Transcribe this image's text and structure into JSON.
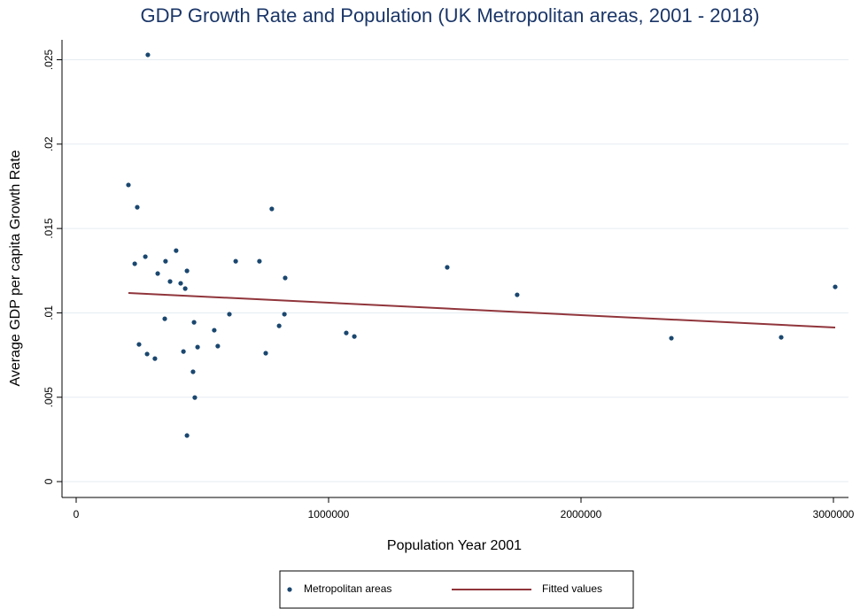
{
  "chart_data": {
    "type": "scatter",
    "title": "GDP Growth Rate and Population (UK Metropolitan areas, 2001 - 2018)",
    "x_label": "Population Year 2001",
    "y_label": "Average GDP per capita Growth Rate",
    "xlim": [
      -56140,
      3059649
    ],
    "ylim": [
      -0.00094,
      0.02618
    ],
    "xticks": [
      0,
      1000000,
      2000000,
      3000000
    ],
    "yticks": [
      0,
      {
        "value": 0.005,
        "label": ".005"
      },
      {
        "value": 0.01,
        "label": ".01"
      },
      {
        "value": 0.015,
        "label": ".015"
      },
      {
        "value": 0.02,
        "label": ".02"
      },
      {
        "value": 0.025,
        "label": ".025"
      }
    ],
    "grid": true,
    "legend": "bottom",
    "series": [
      {
        "name": "Metropolitan areas",
        "type": "scatter",
        "color": "#1a476f",
        "x": [
          207000,
          242000,
          232000,
          274000,
          284000,
          323000,
          354000,
          396000,
          372000,
          414000,
          439000,
          432000,
          351000,
          249000,
          281000,
          312000,
          467000,
          481000,
          425000,
          463000,
          470000,
          439000,
          547000,
          561000,
          607000,
          632000,
          726000,
          775000,
          751000,
          828000,
          825000,
          804000,
          1070000,
          1102000,
          1470000,
          1747000,
          2358000,
          2793000,
          3007000
        ],
        "values": [
          0.01758,
          0.01626,
          0.01291,
          0.01333,
          0.02529,
          0.01233,
          0.01306,
          0.01369,
          0.01186,
          0.01175,
          0.01249,
          0.01144,
          0.00965,
          0.00813,
          0.00756,
          0.00729,
          0.00944,
          0.00797,
          0.00771,
          0.00651,
          0.00498,
          0.00273,
          0.00897,
          0.00803,
          0.00992,
          0.01306,
          0.01306,
          0.01616,
          0.00761,
          0.01207,
          0.00992,
          0.00923,
          0.00881,
          0.0086,
          0.0127,
          0.01107,
          0.0085,
          0.00855,
          0.01154
        ]
      },
      {
        "name": "Fitted values",
        "type": "line",
        "color": "#90353b",
        "x": [
          207000,
          3007000
        ],
        "values": [
          0.01118,
          0.00913
        ]
      }
    ]
  }
}
